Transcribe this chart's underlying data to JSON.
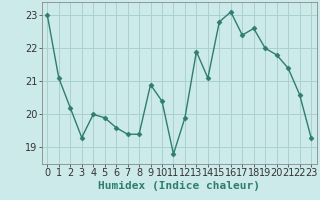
{
  "x": [
    0,
    1,
    2,
    3,
    4,
    5,
    6,
    7,
    8,
    9,
    10,
    11,
    12,
    13,
    14,
    15,
    16,
    17,
    18,
    19,
    20,
    21,
    22,
    23
  ],
  "y": [
    23.0,
    21.1,
    20.2,
    19.3,
    20.0,
    19.9,
    19.6,
    19.4,
    19.4,
    20.9,
    20.4,
    18.8,
    19.9,
    21.9,
    21.1,
    22.8,
    23.1,
    22.4,
    22.6,
    22.0,
    21.8,
    21.4,
    20.6,
    19.3
  ],
  "line_color": "#2e7d6e",
  "marker": "D",
  "marker_size": 2.5,
  "line_width": 1.0,
  "bg_color": "#cceaea",
  "grid_color": "#aad0d0",
  "xlabel": "Humidex (Indice chaleur)",
  "xlabel_fontsize": 8,
  "tick_fontsize": 7,
  "ylim": [
    18.5,
    23.4
  ],
  "yticks": [
    19,
    20,
    21,
    22,
    23
  ],
  "xticks": [
    0,
    1,
    2,
    3,
    4,
    5,
    6,
    7,
    8,
    9,
    10,
    11,
    12,
    13,
    14,
    15,
    16,
    17,
    18,
    19,
    20,
    21,
    22,
    23
  ],
  "xlim": [
    -0.5,
    23.5
  ]
}
